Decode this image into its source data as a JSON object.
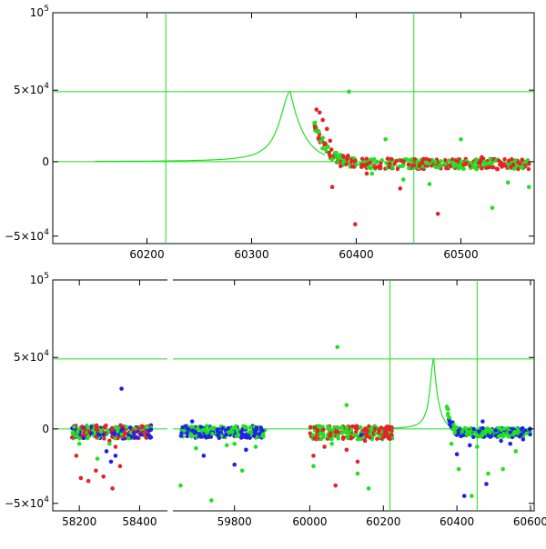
{
  "chart_data": [
    {
      "type": "scatter",
      "title": "",
      "xlabel": "",
      "ylabel": "",
      "xlim": [
        60110,
        60570
      ],
      "ylim": [
        -55000,
        100000
      ],
      "xticks": [
        60200,
        60300,
        60400,
        60500
      ],
      "xtick_labels": [
        "60200",
        "60300",
        "60400",
        "60500"
      ],
      "yticks": [
        {
          "value": 100000,
          "mant": "10",
          "exp": "5"
        },
        {
          "value": 48000,
          "mant": "5×10",
          "exp": "4"
        },
        {
          "value": 0,
          "mant": "0",
          "exp": ""
        },
        {
          "value": -50000,
          "mant": "−5×10",
          "exp": "4"
        }
      ],
      "vlines": [
        60218,
        60455
      ],
      "hlines": [
        47000,
        0
      ],
      "model_peak": {
        "x": 60337,
        "y": 47000
      },
      "series": [
        {
          "color": "#e8202a",
          "role": "data-red",
          "points": [
            [
              60362,
              35000
            ],
            [
              60365,
              33000
            ],
            [
              60368,
              28000
            ],
            [
              60372,
              22000
            ],
            [
              60375,
              14000
            ],
            [
              60377,
              -17000
            ],
            [
              60385,
              -3000
            ],
            [
              60392,
              4000
            ],
            [
              60399,
              -42000
            ],
            [
              60405,
              -3500
            ],
            [
              60410,
              -8000
            ],
            [
              60418,
              -4000
            ],
            [
              60430,
              2000
            ],
            [
              60442,
              -18000
            ],
            [
              60455,
              -2500
            ],
            [
              60470,
              1000
            ],
            [
              60478,
              -35000
            ],
            [
              60490,
              -3000
            ],
            [
              60505,
              -1000
            ],
            [
              60520,
              3000
            ],
            [
              60535,
              -5000
            ],
            [
              60550,
              -2000
            ],
            [
              60565,
              -1500
            ]
          ]
        },
        {
          "color": "#22e022",
          "role": "data-green",
          "points": [
            [
              60360,
              26000
            ],
            [
              60364,
              20000
            ],
            [
              60368,
              16000
            ],
            [
              60373,
              10000
            ],
            [
              60380,
              6000
            ],
            [
              60393,
              47000
            ],
            [
              60400,
              -2000
            ],
            [
              60415,
              -8000
            ],
            [
              60428,
              15000
            ],
            [
              60445,
              -12000
            ],
            [
              60470,
              -15000
            ],
            [
              60485,
              -1500
            ],
            [
              60500,
              15000
            ],
            [
              60515,
              -5000
            ],
            [
              60530,
              -31000
            ],
            [
              60545,
              -14000
            ],
            [
              60565,
              -17000
            ]
          ]
        }
      ]
    },
    {
      "type": "scatter",
      "title": "",
      "xlabel": "",
      "ylabel": "",
      "segments": [
        {
          "xlim": [
            58130,
            58450
          ]
        },
        {
          "xlim": [
            59640,
            59900
          ]
        },
        {
          "xlim": [
            59900,
            60610
          ]
        }
      ],
      "ylim": [
        -55000,
        100000
      ],
      "xtick_labels": [
        "58200",
        "58400",
        "59800",
        "60000",
        "60200",
        "60400",
        "60600"
      ],
      "xticks": [
        58200,
        58400,
        59800,
        60000,
        60200,
        60400,
        60600
      ],
      "yticks": [
        {
          "value": 100000,
          "mant": "10",
          "exp": "5"
        },
        {
          "value": 48000,
          "mant": "5×10",
          "exp": "4"
        },
        {
          "value": 0,
          "mant": "0",
          "exp": ""
        },
        {
          "value": -50000,
          "mant": "−5×10",
          "exp": "4"
        }
      ],
      "vlines": [
        60218,
        60455
      ],
      "hlines": [
        47000,
        0
      ],
      "model_peak": {
        "x": 60337,
        "y": 47000
      },
      "series": [
        {
          "color": "#e8202a",
          "role": "data-red",
          "points": [
            [
              58190,
              -18000
            ],
            [
              58205,
              -33000
            ],
            [
              58230,
              -35000
            ],
            [
              58255,
              -28000
            ],
            [
              58280,
              -32000
            ],
            [
              58300,
              -8000
            ],
            [
              58310,
              -40000
            ],
            [
              58320,
              -12000
            ],
            [
              58335,
              -25000
            ],
            [
              60010,
              -18000
            ],
            [
              60040,
              -12000
            ],
            [
              60070,
              -38000
            ],
            [
              60100,
              -14000
            ],
            [
              60130,
              -22000
            ],
            [
              60150,
              -8000
            ]
          ]
        },
        {
          "color": "#2020e8",
          "role": "data-blue",
          "points": [
            [
              58290,
              -15000
            ],
            [
              58305,
              -22000
            ],
            [
              58320,
              -18000
            ],
            [
              58340,
              27000
            ],
            [
              59690,
              5000
            ],
            [
              59720,
              -18000
            ],
            [
              59760,
              -6000
            ],
            [
              59800,
              -24000
            ],
            [
              59830,
              -14000
            ],
            [
              59855,
              -3000
            ],
            [
              60140,
              -4000
            ],
            [
              60380,
              5000
            ],
            [
              60400,
              -17000
            ],
            [
              60420,
              -45000
            ],
            [
              60435,
              -11000
            ],
            [
              60470,
              5000
            ],
            [
              60480,
              -37000
            ],
            [
              60520,
              -8000
            ],
            [
              60545,
              -10000
            ],
            [
              60580,
              -7000
            ]
          ]
        },
        {
          "color": "#22e022",
          "role": "data-green",
          "points": [
            [
              58200,
              -10000
            ],
            [
              58230,
              -5000
            ],
            [
              58260,
              -20000
            ],
            [
              58300,
              -10000
            ],
            [
              59660,
              -38000
            ],
            [
              59700,
              -13000
            ],
            [
              59740,
              -48000
            ],
            [
              59780,
              -11000
            ],
            [
              59800,
              -10000
            ],
            [
              59820,
              -28000
            ],
            [
              59855,
              -12000
            ],
            [
              60010,
              -25000
            ],
            [
              60060,
              -10000
            ],
            [
              60075,
              55000
            ],
            [
              60100,
              16000
            ],
            [
              60130,
              -30000
            ],
            [
              60160,
              -40000
            ],
            [
              60190,
              -5000
            ],
            [
              60385,
              -10000
            ],
            [
              60405,
              -27000
            ],
            [
              60440,
              -45000
            ],
            [
              60455,
              -12000
            ],
            [
              60485,
              -30000
            ],
            [
              60525,
              -27000
            ],
            [
              60560,
              -15000
            ]
          ]
        }
      ]
    }
  ]
}
